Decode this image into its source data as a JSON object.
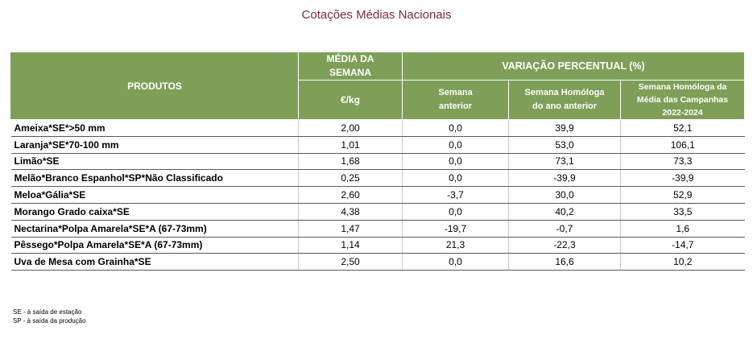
{
  "title": "Cotações Médias Nacionais",
  "header": {
    "produtos": "PRODUTOS",
    "media_line1": "MÉDIA DA",
    "media_line2": "SEMANA",
    "unit": "€/kg",
    "variacao": "VARIAÇÃO PERCENTUAL (%)",
    "sub1_line1": "Semana",
    "sub1_line2": "anterior",
    "sub2_line1": "Semana Homóloga",
    "sub2_line2": "do ano anterior",
    "sub3_line1": "Semana Homóloga da",
    "sub3_line2": "Média das Campanhas",
    "sub3_line3": "2022-2024"
  },
  "rows": [
    {
      "produto": "Ameixa*SE*>50 mm",
      "media": "2,00",
      "anterior": "0,0",
      "homologa_ano": "39,9",
      "homologa_media": "52,1"
    },
    {
      "produto": "Laranja*SE*70-100 mm",
      "media": "1,01",
      "anterior": "0,0",
      "homologa_ano": "53,0",
      "homologa_media": "106,1"
    },
    {
      "produto": "Limão*SE",
      "media": "1,68",
      "anterior": "0,0",
      "homologa_ano": "73,1",
      "homologa_media": "73,3"
    },
    {
      "produto": "Melão*Branco Espanhol*SP*Não Classificado",
      "media": "0,25",
      "anterior": "0,0",
      "homologa_ano": "-39,9",
      "homologa_media": "-39,9"
    },
    {
      "produto": "Meloa*Gália*SE",
      "media": "2,60",
      "anterior": "-3,7",
      "homologa_ano": "30,0",
      "homologa_media": "52,9"
    },
    {
      "produto": "Morango Grado caixa*SE",
      "media": "4,38",
      "anterior": "0,0",
      "homologa_ano": "40,2",
      "homologa_media": "33,5"
    },
    {
      "produto": "Nectarina*Polpa Amarela*SE*A (67-73mm)",
      "media": "1,47",
      "anterior": "-19,7",
      "homologa_ano": "-0,7",
      "homologa_media": "1,6"
    },
    {
      "produto": "Pêssego*Polpa Amarela*SE*A (67-73mm)",
      "media": "1,14",
      "anterior": "21,3",
      "homologa_ano": "-22,3",
      "homologa_media": "-14,7"
    },
    {
      "produto": "Uva de Mesa com Grainha*SE",
      "media": "2,50",
      "anterior": "0,0",
      "homologa_ano": "16,6",
      "homologa_media": "10,2"
    }
  ],
  "footnotes": [
    "SE - à saída de estação",
    "SP - à saída da produção"
  ],
  "colors": {
    "header_bg": "#7f9f58",
    "title": "#7b2c3b"
  }
}
